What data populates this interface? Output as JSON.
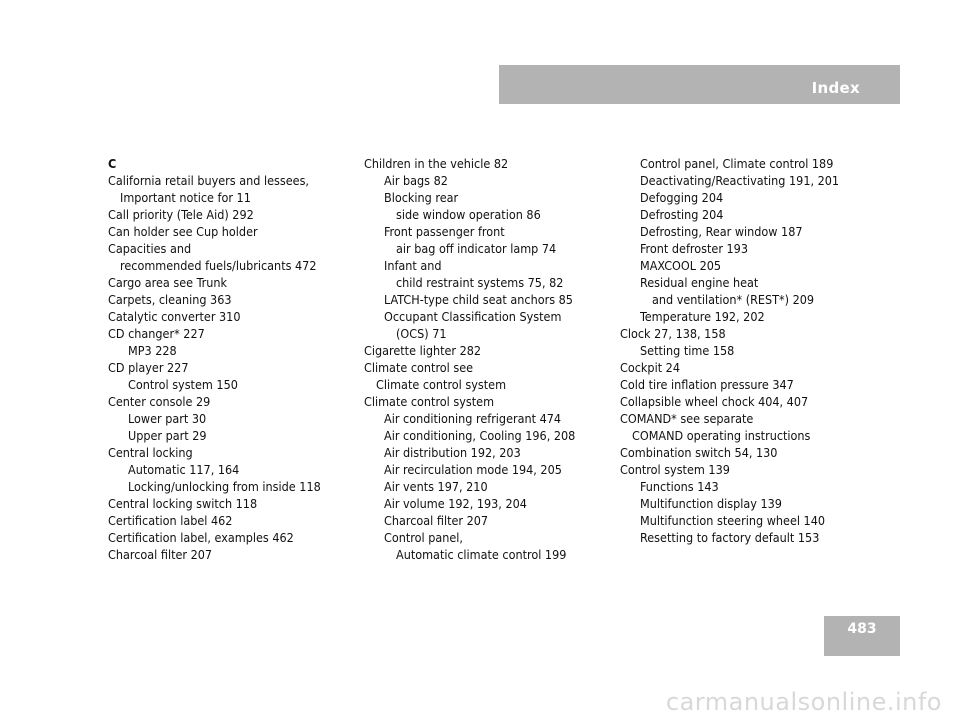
{
  "header": {
    "title": "Index"
  },
  "page_number": "483",
  "watermark": "carmanualsonline.info",
  "columns": [
    [
      {
        "t": "C",
        "c": "letter"
      },
      {
        "t": "California retail buyers and lessees,",
        "c": ""
      },
      {
        "t": "Important notice for    11",
        "c": "i1"
      },
      {
        "t": "Call priority (Tele Aid)    292",
        "c": ""
      },
      {
        "t": "Can holder see Cup holder",
        "c": ""
      },
      {
        "t": "Capacities and",
        "c": ""
      },
      {
        "t": "recommended fuels/lubricants    472",
        "c": "i1"
      },
      {
        "t": "Cargo area see Trunk",
        "c": ""
      },
      {
        "t": "Carpets, cleaning    363",
        "c": ""
      },
      {
        "t": "Catalytic converter    310",
        "c": ""
      },
      {
        "t": "CD changer*    227",
        "c": ""
      },
      {
        "t": "MP3    228",
        "c": "i2"
      },
      {
        "t": "CD player    227",
        "c": ""
      },
      {
        "t": "Control system    150",
        "c": "i2"
      },
      {
        "t": "Center console    29",
        "c": ""
      },
      {
        "t": "Lower part    30",
        "c": "i2"
      },
      {
        "t": "Upper part    29",
        "c": "i2"
      },
      {
        "t": "Central locking",
        "c": ""
      },
      {
        "t": "Automatic    117, 164",
        "c": "i2"
      },
      {
        "t": "Locking/unlocking from inside    118",
        "c": "i2"
      },
      {
        "t": "Central locking switch    118",
        "c": ""
      },
      {
        "t": "Certification label    462",
        "c": ""
      },
      {
        "t": "Certification label, examples    462",
        "c": ""
      },
      {
        "t": "Charcoal filter    207",
        "c": ""
      }
    ],
    [
      {
        "t": "Children in the vehicle    82",
        "c": ""
      },
      {
        "t": "Air bags    82",
        "c": "i2"
      },
      {
        "t": "Blocking rear",
        "c": "i2"
      },
      {
        "t": "side window operation    86",
        "c": "i3"
      },
      {
        "t": "Front passenger front",
        "c": "i2"
      },
      {
        "t": "air bag off indicator lamp    74",
        "c": "i3"
      },
      {
        "t": "Infant and",
        "c": "i2"
      },
      {
        "t": "child restraint systems    75, 82",
        "c": "i3"
      },
      {
        "t": "LATCH-type child seat anchors    85",
        "c": "i2"
      },
      {
        "t": "Occupant Classification System",
        "c": "i2"
      },
      {
        "t": "(OCS)    71",
        "c": "i3"
      },
      {
        "t": "Cigarette lighter    282",
        "c": ""
      },
      {
        "t": "Climate control see",
        "c": ""
      },
      {
        "t": "Climate control system",
        "c": "i1"
      },
      {
        "t": "Climate control system",
        "c": ""
      },
      {
        "t": "Air conditioning refrigerant    474",
        "c": "i2"
      },
      {
        "t": "Air conditioning, Cooling    196, 208",
        "c": "i2"
      },
      {
        "t": "Air distribution    192, 203",
        "c": "i2"
      },
      {
        "t": "Air recirculation mode    194, 205",
        "c": "i2"
      },
      {
        "t": "Air vents    197, 210",
        "c": "i2"
      },
      {
        "t": "Air volume    192, 193, 204",
        "c": "i2"
      },
      {
        "t": "Charcoal filter    207",
        "c": "i2"
      },
      {
        "t": "Control panel,",
        "c": "i2"
      },
      {
        "t": "Automatic climate control    199",
        "c": "i3"
      }
    ],
    [
      {
        "t": "Control panel, Climate control    189",
        "c": "i2"
      },
      {
        "t": "Deactivating/Reactivating    191, 201",
        "c": "i2"
      },
      {
        "t": "Defogging    204",
        "c": "i2"
      },
      {
        "t": "Defrosting    204",
        "c": "i2"
      },
      {
        "t": "Defrosting, Rear window    187",
        "c": "i2"
      },
      {
        "t": "Front defroster    193",
        "c": "i2"
      },
      {
        "t": "MAXCOOL    205",
        "c": "i2"
      },
      {
        "t": "Residual engine heat",
        "c": "i2"
      },
      {
        "t": "and ventilation* (REST*)    209",
        "c": "i3"
      },
      {
        "t": "Temperature    192, 202",
        "c": "i2"
      },
      {
        "t": "Clock    27, 138, 158",
        "c": ""
      },
      {
        "t": "Setting time    158",
        "c": "i2"
      },
      {
        "t": "Cockpit    24",
        "c": ""
      },
      {
        "t": "Cold tire inflation pressure    347",
        "c": ""
      },
      {
        "t": "Collapsible wheel chock    404, 407",
        "c": ""
      },
      {
        "t": "COMAND* see separate",
        "c": ""
      },
      {
        "t": "COMAND operating instructions",
        "c": "i1"
      },
      {
        "t": "Combination switch    54, 130",
        "c": ""
      },
      {
        "t": "Control system    139",
        "c": ""
      },
      {
        "t": "Functions    143",
        "c": "i2"
      },
      {
        "t": "Multifunction display    139",
        "c": "i2"
      },
      {
        "t": "Multifunction steering wheel    140",
        "c": "i2"
      },
      {
        "t": "Resetting to factory default    153",
        "c": "i2"
      }
    ]
  ]
}
